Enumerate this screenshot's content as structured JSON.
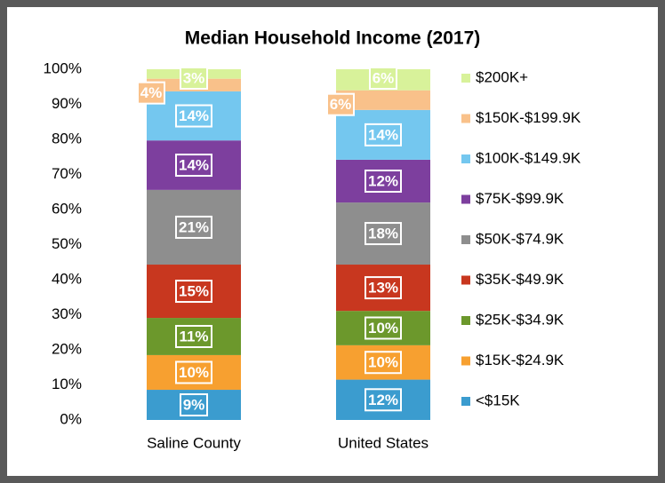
{
  "chart_data": {
    "type": "stacked_bar",
    "title": "Median Household Income (2017)",
    "categories": [
      "Saline County",
      "United States"
    ],
    "series": [
      {
        "name": "<$15K",
        "color": "#3b9ccf",
        "values": [
          8.6,
          11.5
        ],
        "value_labels": [
          "9%",
          "12%"
        ]
      },
      {
        "name": "$15K-$24.9K",
        "color": "#f7a030",
        "values": [
          9.9,
          9.8
        ],
        "value_labels": [
          "10%",
          "10%"
        ]
      },
      {
        "name": "$25K-$34.9K",
        "color": "#6c982c",
        "values": [
          10.6,
          9.8
        ],
        "value_labels": [
          "11%",
          "10%"
        ]
      },
      {
        "name": "$35K-$49.9K",
        "color": "#c8371f",
        "values": [
          15.2,
          13.2
        ],
        "value_labels": [
          "15%",
          "13%"
        ]
      },
      {
        "name": "$50K-$74.9K",
        "color": "#8e8e8e",
        "values": [
          21.3,
          17.7
        ],
        "value_labels": [
          "21%",
          "18%"
        ]
      },
      {
        "name": "$75K-$99.9K",
        "color": "#7d3f9e",
        "values": [
          14.1,
          12.2
        ],
        "value_labels": [
          "14%",
          "12%"
        ]
      },
      {
        "name": "$100K-$149.9K",
        "color": "#74c7ef",
        "values": [
          14.0,
          14.2
        ],
        "value_labels": [
          "14%",
          "14%"
        ]
      },
      {
        "name": "$150K-$199.9K",
        "color": "#f9c18a",
        "values": [
          3.6,
          5.6
        ],
        "value_labels": [
          "4%",
          "6%"
        ]
      },
      {
        "name": "$200K+",
        "color": "#d8f29a",
        "values": [
          2.7,
          6.0
        ],
        "value_labels": [
          "3%",
          "6%"
        ]
      }
    ],
    "ylim": [
      0,
      100
    ],
    "yticks": [
      {
        "value": 0,
        "label": "0%"
      },
      {
        "value": 10,
        "label": "10%"
      },
      {
        "value": 20,
        "label": "20%"
      },
      {
        "value": 30,
        "label": "30%"
      },
      {
        "value": 40,
        "label": "40%"
      },
      {
        "value": 50,
        "label": "50%"
      },
      {
        "value": 60,
        "label": "60%"
      },
      {
        "value": 70,
        "label": "70%"
      },
      {
        "value": 80,
        "label": "80%"
      },
      {
        "value": 90,
        "label": "90%"
      },
      {
        "value": 100,
        "label": "100%"
      }
    ],
    "legend": "right"
  }
}
